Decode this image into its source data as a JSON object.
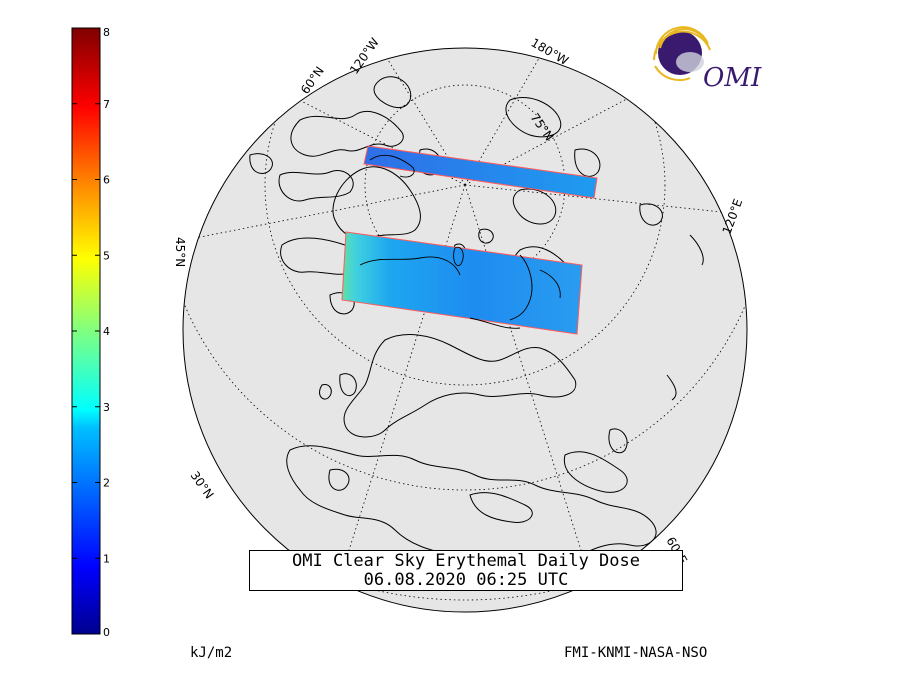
{
  "title_line1": "OMI Clear Sky Erythemal Daily Dose",
  "title_line2": "06.08.2020 06:25 UTC",
  "units_label": "kJ/m2",
  "credit_label": "FMI-KNMI-NASA-NSO",
  "logo_text": "OMI",
  "colorbar": {
    "min": 0,
    "max": 8,
    "tick_labels": [
      "0",
      "1",
      "2",
      "3",
      "4",
      "5",
      "6",
      "7",
      "8"
    ],
    "colormap": "jet"
  },
  "grid_labels": {
    "lat_60": "60°N",
    "lat_75": "75°N",
    "lat_30": "30°N",
    "lat_45": "45°N",
    "lon_120w": "120°W",
    "lon_180w": "180°W",
    "lon_120e": "120°E",
    "lon_60e": "60°E"
  },
  "colors": {
    "land": "#e6e6e6",
    "coast": "#000000",
    "swath_edge": "#ff5a5a",
    "swath_fill": "#1e8cf0",
    "swath_low": "#2f78e8",
    "swath_high": "#3fd0e0",
    "swath_green": "#5fe0a8",
    "logo_purple": "#3a1a6e",
    "logo_gold": "#e8b820"
  }
}
